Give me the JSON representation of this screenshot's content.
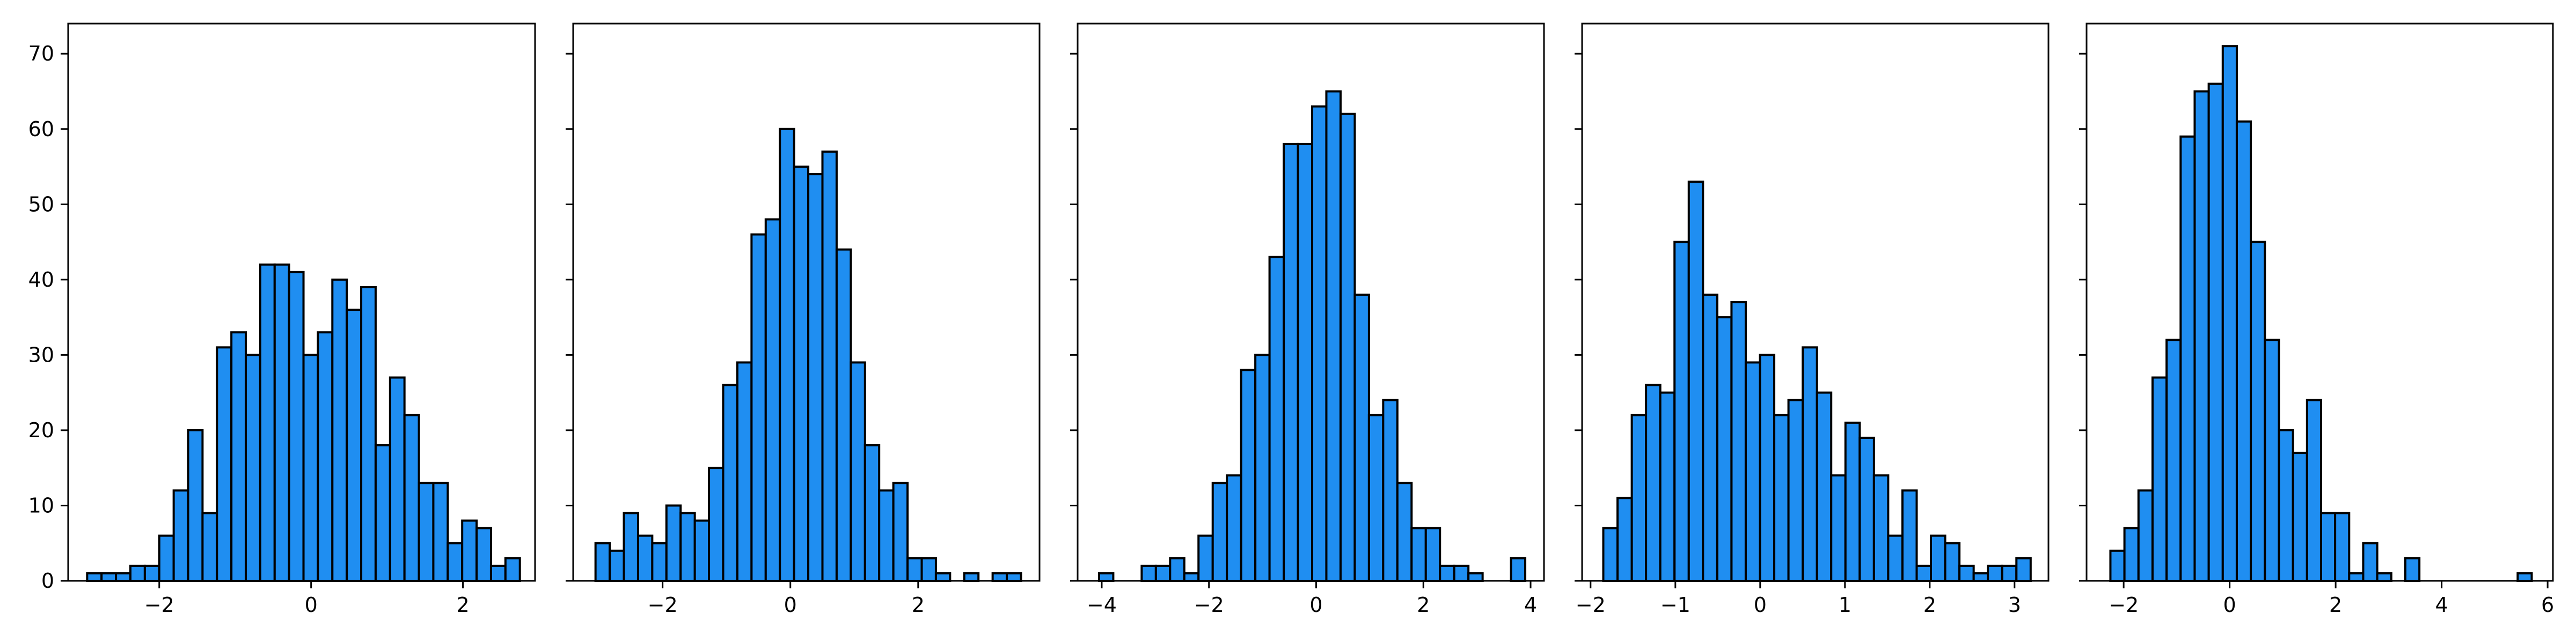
{
  "chart_data": [
    {
      "type": "bar",
      "subtype": "histogram",
      "bins": {
        "start": -2.95,
        "width": 0.19
      },
      "values": [
        1,
        1,
        1,
        2,
        2,
        6,
        12,
        20,
        9,
        31,
        33,
        30,
        42,
        42,
        41,
        30,
        33,
        40,
        36,
        39,
        18,
        27,
        22,
        13,
        13,
        5,
        8,
        7,
        2,
        3
      ],
      "xlim": [
        -3.2,
        2.95
      ],
      "ylim": [
        0,
        74
      ],
      "xticks": [
        {
          "value": -2,
          "label": "−2"
        },
        {
          "value": 0,
          "label": "0"
        },
        {
          "value": 2,
          "label": "2"
        }
      ],
      "yticks": [
        {
          "value": 0,
          "label": "0"
        },
        {
          "value": 10,
          "label": "10"
        },
        {
          "value": 20,
          "label": "20"
        },
        {
          "value": 30,
          "label": "30"
        },
        {
          "value": 40,
          "label": "40"
        },
        {
          "value": 50,
          "label": "50"
        },
        {
          "value": 60,
          "label": "60"
        },
        {
          "value": 70,
          "label": "70"
        }
      ],
      "grid": false,
      "bar_color": "#1f8ef1",
      "edge_color": "#000000"
    },
    {
      "type": "bar",
      "subtype": "histogram",
      "bins": {
        "start": -3.05,
        "width": 0.222
      },
      "values": [
        5,
        4,
        9,
        6,
        5,
        10,
        9,
        8,
        15,
        26,
        29,
        46,
        48,
        60,
        55,
        54,
        57,
        44,
        29,
        18,
        12,
        13,
        3,
        3,
        1,
        0,
        1,
        0,
        1,
        1
      ],
      "xlim": [
        -3.4,
        3.9
      ],
      "ylim": [
        0,
        74
      ],
      "xticks": [
        {
          "value": -2,
          "label": "−2"
        },
        {
          "value": 0,
          "label": "0"
        },
        {
          "value": 2,
          "label": "2"
        }
      ],
      "yticks": [
        {
          "value": 0,
          "label": ""
        },
        {
          "value": 10,
          "label": ""
        },
        {
          "value": 20,
          "label": ""
        },
        {
          "value": 30,
          "label": ""
        },
        {
          "value": 40,
          "label": ""
        },
        {
          "value": 50,
          "label": ""
        },
        {
          "value": 60,
          "label": ""
        },
        {
          "value": 70,
          "label": ""
        }
      ],
      "grid": false,
      "bar_color": "#1f8ef1",
      "edge_color": "#000000"
    },
    {
      "type": "bar",
      "subtype": "histogram",
      "bins": {
        "start": -4.05,
        "width": 0.265
      },
      "values": [
        1,
        0,
        0,
        2,
        2,
        3,
        1,
        6,
        13,
        14,
        28,
        30,
        43,
        58,
        58,
        63,
        65,
        62,
        38,
        22,
        24,
        13,
        7,
        7,
        2,
        2,
        1,
        0,
        0,
        3
      ],
      "xlim": [
        -4.45,
        4.25
      ],
      "ylim": [
        0,
        74
      ],
      "xticks": [
        {
          "value": -4,
          "label": "−4"
        },
        {
          "value": -2,
          "label": "−2"
        },
        {
          "value": 0,
          "label": "0"
        },
        {
          "value": 2,
          "label": "2"
        },
        {
          "value": 4,
          "label": "4"
        }
      ],
      "yticks": [
        {
          "value": 0,
          "label": ""
        },
        {
          "value": 10,
          "label": ""
        },
        {
          "value": 20,
          "label": ""
        },
        {
          "value": 30,
          "label": ""
        },
        {
          "value": 40,
          "label": ""
        },
        {
          "value": 50,
          "label": ""
        },
        {
          "value": 60,
          "label": ""
        },
        {
          "value": 70,
          "label": ""
        }
      ],
      "grid": false,
      "bar_color": "#1f8ef1",
      "edge_color": "#000000"
    },
    {
      "type": "bar",
      "subtype": "histogram",
      "bins": {
        "start": -1.85,
        "width": 0.168
      },
      "values": [
        7,
        11,
        22,
        26,
        25,
        45,
        53,
        38,
        35,
        37,
        29,
        30,
        22,
        24,
        31,
        25,
        14,
        21,
        19,
        14,
        6,
        12,
        2,
        6,
        5,
        2,
        1,
        2,
        2,
        3
      ],
      "xlim": [
        -2.1,
        3.4
      ],
      "ylim": [
        0,
        74
      ],
      "xticks": [
        {
          "value": -2,
          "label": "−2"
        },
        {
          "value": -1,
          "label": "−1"
        },
        {
          "value": 0,
          "label": "0"
        },
        {
          "value": 1,
          "label": "1"
        },
        {
          "value": 2,
          "label": "2"
        },
        {
          "value": 3,
          "label": "3"
        }
      ],
      "yticks": [
        {
          "value": 0,
          "label": ""
        },
        {
          "value": 10,
          "label": ""
        },
        {
          "value": 20,
          "label": ""
        },
        {
          "value": 30,
          "label": ""
        },
        {
          "value": 40,
          "label": ""
        },
        {
          "value": 50,
          "label": ""
        },
        {
          "value": 60,
          "label": ""
        },
        {
          "value": 70,
          "label": ""
        }
      ],
      "grid": false,
      "bar_color": "#1f8ef1",
      "edge_color": "#000000"
    },
    {
      "type": "bar",
      "subtype": "histogram",
      "bins": {
        "start": -2.25,
        "width": 0.265
      },
      "values": [
        4,
        7,
        12,
        27,
        32,
        59,
        65,
        66,
        71,
        61,
        45,
        32,
        20,
        17,
        24,
        9,
        9,
        1,
        5,
        1,
        0,
        3,
        0,
        0,
        0,
        0,
        0,
        0,
        0,
        1
      ],
      "xlim": [
        -2.7,
        6.1
      ],
      "ylim": [
        0,
        74
      ],
      "xticks": [
        {
          "value": -2,
          "label": "−2"
        },
        {
          "value": 0,
          "label": "0"
        },
        {
          "value": 2,
          "label": "2"
        },
        {
          "value": 4,
          "label": "4"
        },
        {
          "value": 6,
          "label": "6"
        }
      ],
      "yticks": [
        {
          "value": 0,
          "label": ""
        },
        {
          "value": 10,
          "label": ""
        },
        {
          "value": 20,
          "label": ""
        },
        {
          "value": 30,
          "label": ""
        },
        {
          "value": 40,
          "label": ""
        },
        {
          "value": 50,
          "label": ""
        },
        {
          "value": 60,
          "label": ""
        },
        {
          "value": 70,
          "label": ""
        }
      ],
      "grid": false,
      "bar_color": "#1f8ef1",
      "edge_color": "#000000"
    }
  ]
}
